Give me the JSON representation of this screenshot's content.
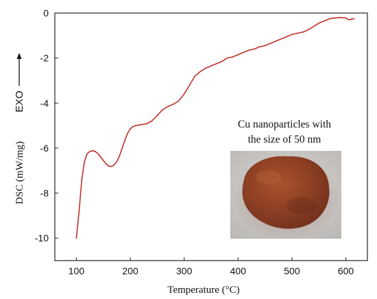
{
  "chart_data": {
    "type": "line",
    "xlabel": "Temperature (°C)",
    "ylabel": "DSC (mW/mg)",
    "exo_label": "EXO",
    "xlim": [
      60,
      640
    ],
    "ylim": [
      -11,
      0
    ],
    "xticks": [
      100,
      200,
      300,
      400,
      500,
      600
    ],
    "yticks": [
      0,
      -2,
      -4,
      -6,
      -8,
      -10
    ],
    "grid": false,
    "series": [
      {
        "color": "#c0312b",
        "x": [
          100,
          105,
          110,
          115,
          120,
          125,
          130,
          135,
          140,
          145,
          150,
          155,
          160,
          165,
          170,
          175,
          180,
          185,
          190,
          195,
          200,
          205,
          210,
          215,
          220,
          225,
          230,
          240,
          250,
          260,
          270,
          280,
          290,
          300,
          310,
          320,
          330,
          340,
          350,
          360,
          370,
          380,
          390,
          400,
          410,
          420,
          430,
          440,
          450,
          460,
          470,
          480,
          490,
          500,
          510,
          520,
          530,
          540,
          550,
          560,
          570,
          580,
          590,
          600,
          605,
          610,
          615
        ],
        "y": [
          -10.0,
          -8.8,
          -7.4,
          -6.6,
          -6.25,
          -6.15,
          -6.12,
          -6.15,
          -6.25,
          -6.4,
          -6.55,
          -6.7,
          -6.8,
          -6.82,
          -6.75,
          -6.6,
          -6.35,
          -6.0,
          -5.65,
          -5.35,
          -5.15,
          -5.05,
          -5.0,
          -4.98,
          -4.96,
          -4.94,
          -4.92,
          -4.8,
          -4.55,
          -4.3,
          -4.15,
          -4.05,
          -3.9,
          -3.6,
          -3.2,
          -2.8,
          -2.6,
          -2.45,
          -2.35,
          -2.25,
          -2.15,
          -2.0,
          -1.95,
          -1.85,
          -1.75,
          -1.65,
          -1.6,
          -1.5,
          -1.45,
          -1.35,
          -1.25,
          -1.15,
          -1.05,
          -0.95,
          -0.9,
          -0.85,
          -0.75,
          -0.6,
          -0.45,
          -0.35,
          -0.25,
          -0.22,
          -0.2,
          -0.22,
          -0.3,
          -0.28,
          -0.25
        ]
      }
    ],
    "inset": {
      "caption_line1": "Cu nanoparticles with",
      "caption_line2": "the size of 50 nm"
    }
  }
}
